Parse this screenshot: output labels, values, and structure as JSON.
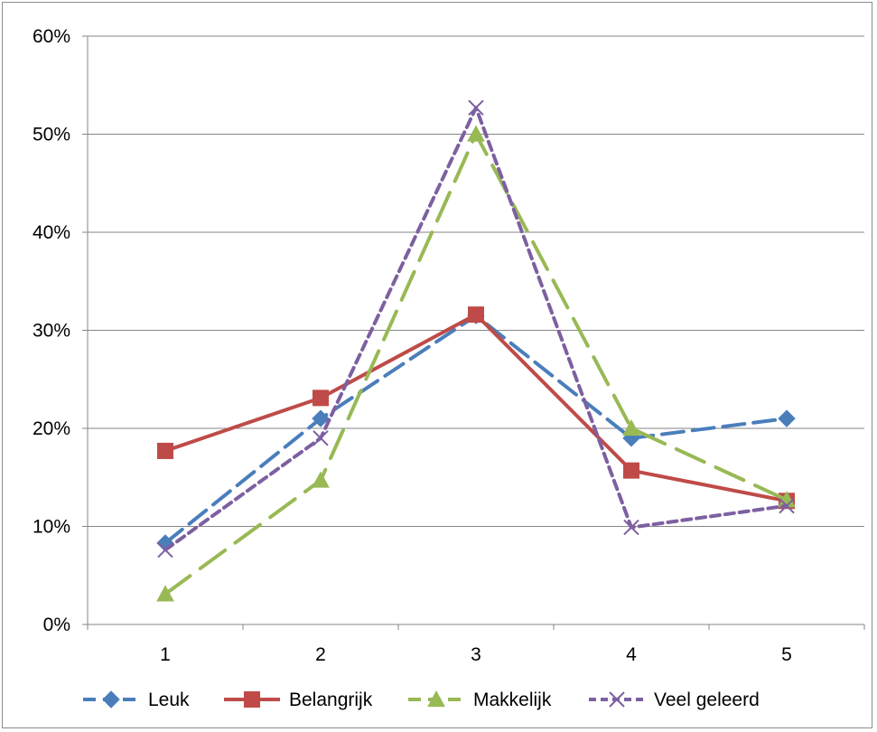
{
  "chart_data": {
    "type": "line",
    "title": "",
    "xlabel": "",
    "ylabel": "",
    "categories": [
      "1",
      "2",
      "3",
      "4",
      "5"
    ],
    "ylim": [
      0,
      0.6
    ],
    "y_ticks": [
      0,
      0.1,
      0.2,
      0.3,
      0.4,
      0.5,
      0.6
    ],
    "y_tick_labels": [
      "0%",
      "10%",
      "20%",
      "30%",
      "40%",
      "50%",
      "60%"
    ],
    "grid": "horizontal",
    "legend_position": "bottom",
    "series": [
      {
        "name": "Leuk",
        "values": [
          0.083,
          0.21,
          0.315,
          0.19,
          0.21
        ],
        "color": "#4a7ebb",
        "marker": "diamond",
        "dash": "dashed"
      },
      {
        "name": "Belangrijk",
        "values": [
          0.177,
          0.231,
          0.316,
          0.157,
          0.126
        ],
        "color": "#be4b48",
        "marker": "square",
        "dash": "solid"
      },
      {
        "name": "Makkelijk",
        "values": [
          0.031,
          0.147,
          0.5,
          0.2,
          0.127
        ],
        "color": "#98b954",
        "marker": "triangle",
        "dash": "longdash"
      },
      {
        "name": "Veel geleerd",
        "values": [
          0.076,
          0.19,
          0.527,
          0.099,
          0.121
        ],
        "color": "#7d60a0",
        "marker": "x",
        "dash": "shortdash"
      }
    ]
  }
}
